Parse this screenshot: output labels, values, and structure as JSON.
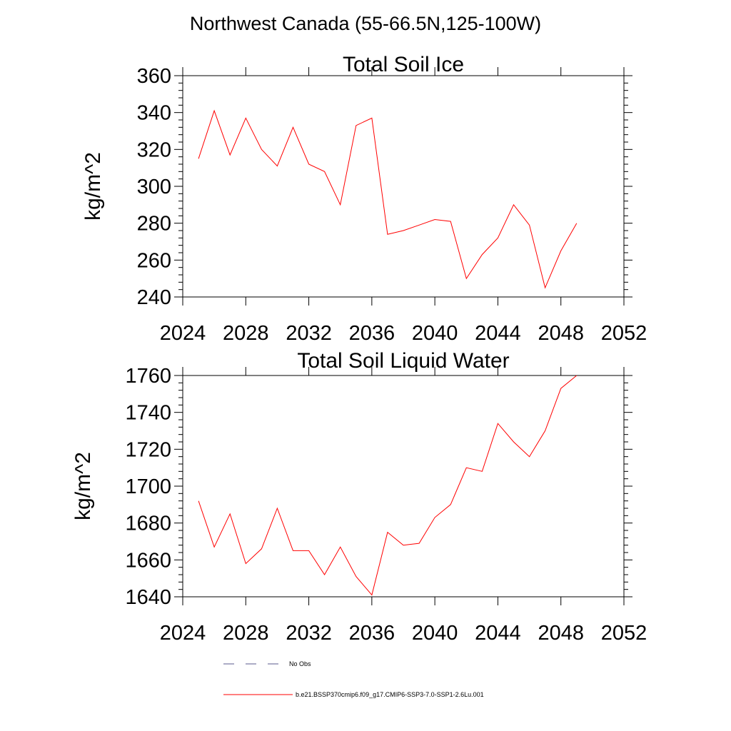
{
  "page_title": "Northwest Canada (55-66.5N,125-100W)",
  "colors": {
    "series": "#ff0000",
    "obs": "#5a5a8c",
    "axis": "#000000"
  },
  "legend": {
    "obs_label": "No Obs",
    "model_label": "b.e21.BSSP370cmip6.f09_g17.CMIP6-SSP3-7.0-SSP1-2.6Lu.001"
  },
  "chart_data": [
    {
      "type": "line",
      "title": "Total Soil Ice",
      "xlabel": "",
      "ylabel": "kg/m^2",
      "xlim": [
        2024,
        2052
      ],
      "ylim": [
        240,
        360
      ],
      "xticks": [
        2024,
        2028,
        2032,
        2036,
        2040,
        2044,
        2048,
        2052
      ],
      "yticks": [
        240,
        260,
        280,
        300,
        320,
        340,
        360
      ],
      "x": [
        2025,
        2026,
        2027,
        2028,
        2029,
        2030,
        2031,
        2032,
        2033,
        2034,
        2035,
        2036,
        2037,
        2038,
        2039,
        2040,
        2041,
        2042,
        2043,
        2044,
        2045,
        2046,
        2047,
        2048,
        2049
      ],
      "series": [
        {
          "name": "b.e21.BSSP370cmip6.f09_g17.CMIP6-SSP3-7.0-SSP1-2.6Lu.001",
          "values": [
            315,
            341,
            317,
            337,
            320,
            311,
            332,
            312,
            308,
            290,
            333,
            337,
            274,
            276,
            279,
            282,
            281,
            250,
            263,
            272,
            290,
            279,
            245,
            265,
            280
          ]
        }
      ]
    },
    {
      "type": "line",
      "title": "Total Soil Liquid Water",
      "xlabel": "",
      "ylabel": "kg/m^2",
      "xlim": [
        2024,
        2052
      ],
      "ylim": [
        1640,
        1760
      ],
      "xticks": [
        2024,
        2028,
        2032,
        2036,
        2040,
        2044,
        2048,
        2052
      ],
      "yticks": [
        1640,
        1660,
        1680,
        1700,
        1720,
        1740,
        1760
      ],
      "x": [
        2025,
        2026,
        2027,
        2028,
        2029,
        2030,
        2031,
        2032,
        2033,
        2034,
        2035,
        2036,
        2037,
        2038,
        2039,
        2040,
        2041,
        2042,
        2043,
        2044,
        2045,
        2046,
        2047,
        2048,
        2049
      ],
      "series": [
        {
          "name": "b.e21.BSSP370cmip6.f09_g17.CMIP6-SSP3-7.0-SSP1-2.6Lu.001",
          "values": [
            1692,
            1667,
            1685,
            1658,
            1666,
            1688,
            1665,
            1665,
            1652,
            1667,
            1651,
            1641,
            1675,
            1668,
            1669,
            1683,
            1690,
            1710,
            1708,
            1734,
            1724,
            1716,
            1730,
            1753,
            1760
          ]
        }
      ]
    }
  ]
}
